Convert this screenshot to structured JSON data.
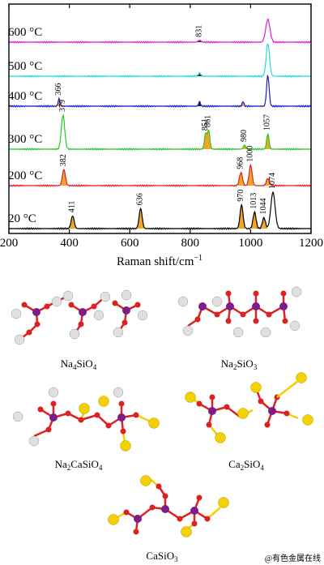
{
  "chart_data": {
    "type": "line",
    "xlabel": "Raman shift/cm",
    "xlabel_sup": "−1",
    "xlim": [
      200,
      1200
    ],
    "x_ticks": [
      "200",
      "400",
      "600",
      "800",
      "1000",
      "1200"
    ],
    "series": [
      {
        "name": "20 °C",
        "color": "#000000",
        "peaks": [
          {
            "x": 411,
            "h": 0.35,
            "label": "411"
          },
          {
            "x": 636,
            "h": 0.55,
            "label": "636"
          },
          {
            "x": 970,
            "h": 0.65,
            "label": "970"
          },
          {
            "x": 1013,
            "h": 0.45,
            "label": "1013"
          },
          {
            "x": 1044,
            "h": 0.3,
            "label": "1044"
          },
          {
            "x": 1074,
            "h": 1.0,
            "label": "1074"
          }
        ]
      },
      {
        "name": "200 °C",
        "color": "#dd2222",
        "peaks": [
          {
            "x": 382,
            "h": 0.55,
            "label": "382"
          },
          {
            "x": 968,
            "h": 0.45,
            "label": "968"
          },
          {
            "x": 1000,
            "h": 0.7,
            "label": "1000"
          },
          {
            "x": 1057,
            "h": 0.25,
            "label": ""
          }
        ]
      },
      {
        "name": "300 °C",
        "color": "#22cc22",
        "peaks": [
          {
            "x": 379,
            "h": 1.0,
            "label": "379"
          },
          {
            "x": 851,
            "h": 0.45,
            "label": "851"
          },
          {
            "x": 861,
            "h": 0.55,
            "label": "861"
          },
          {
            "x": 980,
            "h": 0.12,
            "label": "980"
          },
          {
            "x": 1057,
            "h": 0.45,
            "label": "1057"
          }
        ]
      },
      {
        "name": "400 °C",
        "color": "#1a1acc",
        "peaks": [
          {
            "x": 366,
            "h": 0.25,
            "label": "366"
          },
          {
            "x": 831,
            "h": 0.15,
            "label": ""
          },
          {
            "x": 975,
            "h": 0.15,
            "label": ""
          },
          {
            "x": 1057,
            "h": 1.0,
            "label": ""
          }
        ]
      },
      {
        "name": "500 °C",
        "color": "#22dddd",
        "peaks": [
          {
            "x": 831,
            "h": 0.1,
            "label": ""
          },
          {
            "x": 1057,
            "h": 1.0,
            "label": ""
          }
        ]
      },
      {
        "name": "600 °C",
        "color": "#dd22dd",
        "peaks": [
          {
            "x": 831,
            "h": 0.08,
            "label": "831"
          },
          {
            "x": 1057,
            "h": 1.0,
            "label": ""
          }
        ]
      }
    ]
  },
  "structures": [
    {
      "id": "na4sio4",
      "base": "Na",
      "sub1": "4",
      "mid": "SiO",
      "sub2": "4",
      "tail": "",
      "sub3": ""
    },
    {
      "id": "na2sio3",
      "base": "Na",
      "sub1": "2",
      "mid": "SiO",
      "sub2": "3",
      "tail": "",
      "sub3": ""
    },
    {
      "id": "na2casio4",
      "base": "Na",
      "sub1": "2",
      "mid": "CaSiO",
      "sub2": "4",
      "tail": "",
      "sub3": ""
    },
    {
      "id": "ca2sio4",
      "base": "Ca",
      "sub1": "2",
      "mid": "SiO",
      "sub2": "4",
      "tail": "",
      "sub3": ""
    },
    {
      "id": "casio3",
      "base": "CaSiO",
      "sub1": "3",
      "mid": "",
      "sub2": "",
      "tail": "",
      "sub3": ""
    }
  ],
  "atom_colors": {
    "Si": "#7b1e8c",
    "O": "#dd2020",
    "Na": "#e0e0e0",
    "Ca": "#f5d000",
    "band": "#f2a020"
  },
  "watermark": "@有色金属在线"
}
